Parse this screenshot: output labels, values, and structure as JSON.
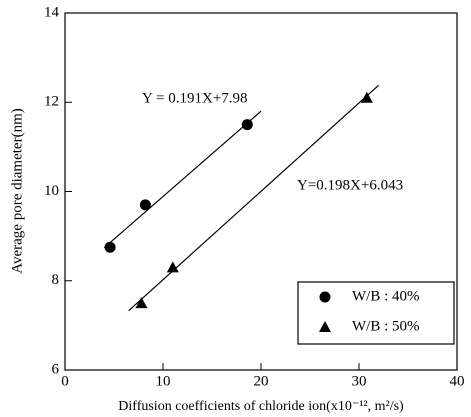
{
  "chart_data": {
    "type": "scatter",
    "xlabel": "Diffusion coefficients of chloride ion(x10⁻¹², m²/s)",
    "ylabel": "Average pore diameter(nm)",
    "xlim": [
      0,
      40
    ],
    "xticks": [
      0,
      10,
      20,
      30,
      40
    ],
    "ylim": [
      6,
      14
    ],
    "yticks": [
      6,
      8,
      10,
      12,
      14
    ],
    "legend": "lower right",
    "series": [
      {
        "name": "W/B : 40%",
        "marker": "circle",
        "color": "#000000",
        "x": [
          4.6,
          8.2,
          18.6
        ],
        "values": [
          8.75,
          9.7,
          11.5
        ]
      },
      {
        "name": "W/B : 50%",
        "marker": "triangle",
        "color": "#000000",
        "x": [
          7.8,
          11,
          30.8
        ],
        "values": [
          7.5,
          8.3,
          12.1
        ]
      }
    ],
    "fit_lines": [
      {
        "x": [
          4,
          20
        ],
        "values": [
          8.74,
          11.8
        ]
      },
      {
        "x": [
          6.5,
          32
        ],
        "values": [
          7.33,
          12.38
        ]
      }
    ],
    "annotations": [
      "Y = 0.191X+7.98",
      "Y=0.198X+6.043"
    ]
  }
}
